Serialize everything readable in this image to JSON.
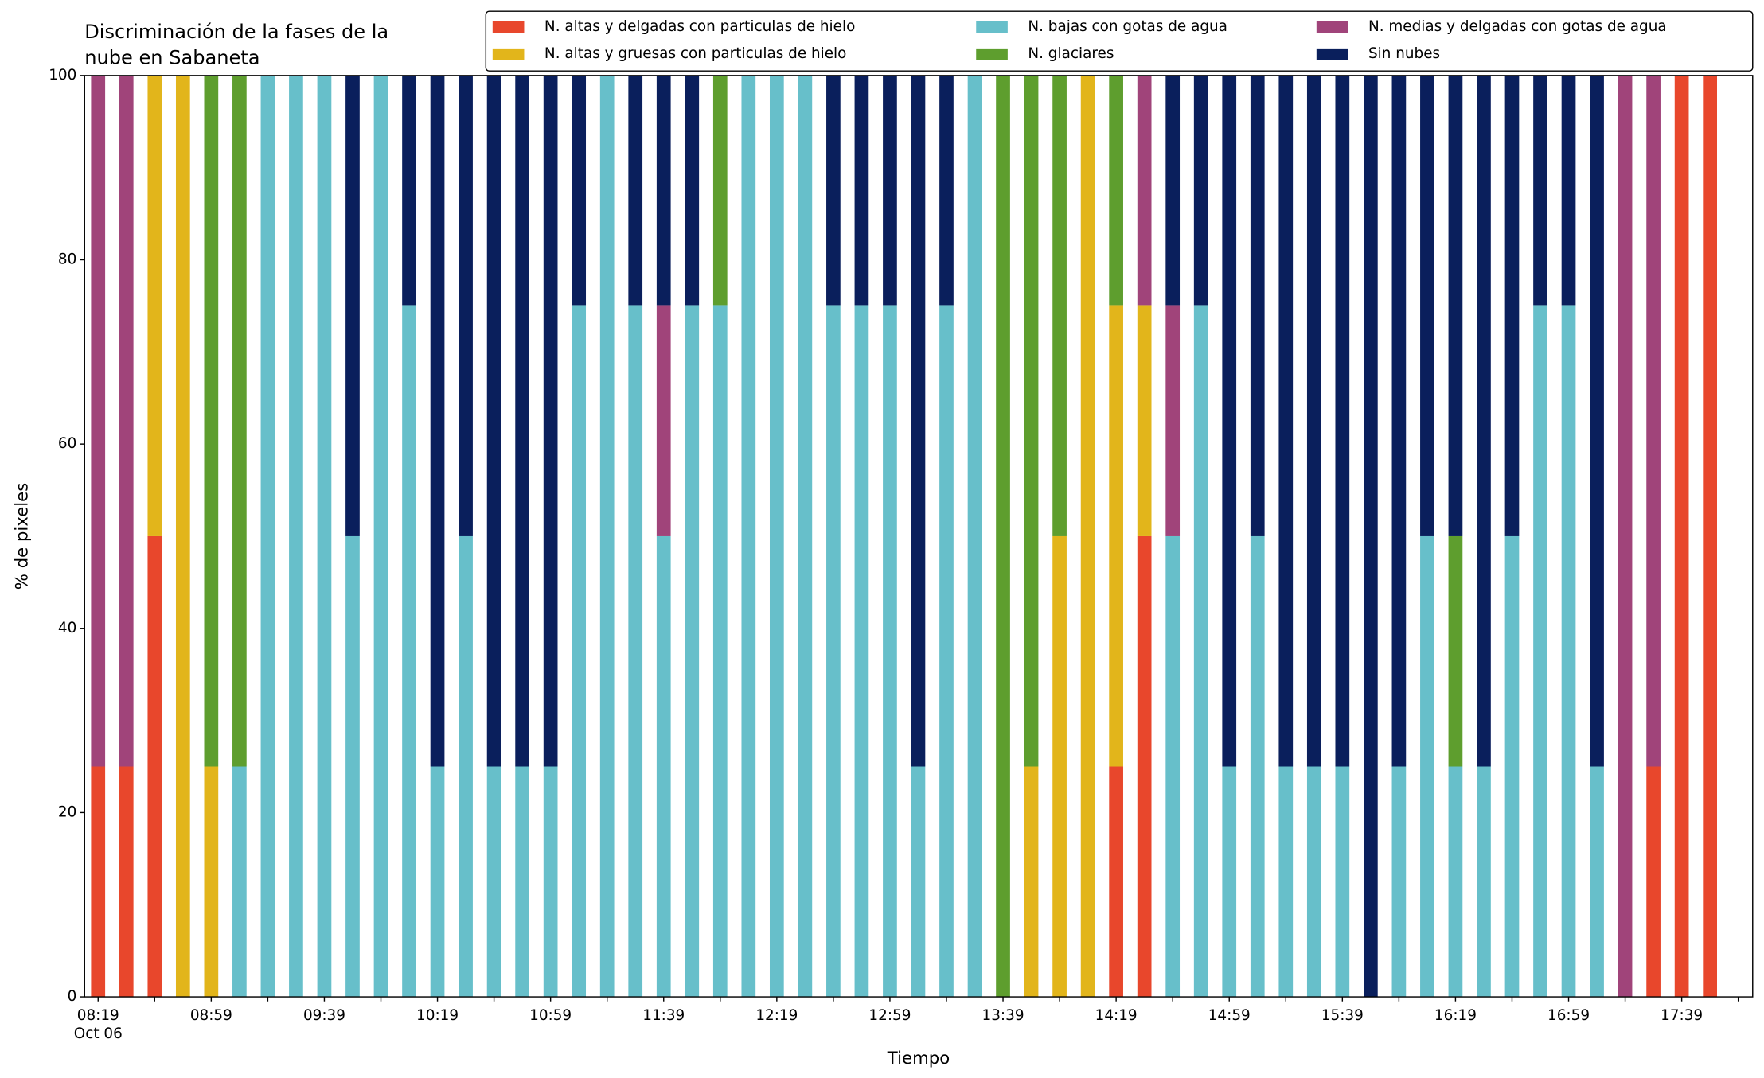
{
  "chart_data": {
    "type": "stacked_bar",
    "title": [
      "Discriminación de la fases de la",
      "nube en Sabaneta"
    ],
    "xlabel": "Tiempo",
    "ylabel": "% de pixeles",
    "x_date_label": "Oct 06",
    "categories": [
      "08:19",
      null,
      null,
      null,
      "08:59",
      null,
      null,
      null,
      "09:39",
      null,
      null,
      null,
      "10:19",
      null,
      null,
      null,
      "10:59",
      null,
      null,
      null,
      "11:39",
      null,
      null,
      null,
      "12:19",
      null,
      null,
      null,
      "12:59",
      null,
      null,
      null,
      "13:39",
      null,
      null,
      null,
      "14:19",
      null,
      null,
      null,
      "14:59",
      null,
      null,
      null,
      "15:39",
      null,
      null,
      null,
      "16:19",
      null,
      null,
      null,
      "16:59",
      null,
      null,
      null,
      "17:39",
      null
    ],
    "ylim": [
      0,
      100
    ],
    "yticks": [
      0,
      20,
      40,
      60,
      80,
      100
    ],
    "series": [
      {
        "name": "N. altas y delgadas con particulas de hielo",
        "color": "#e8472c",
        "values": [
          25,
          25,
          50,
          0,
          0,
          0,
          0,
          0,
          0,
          0,
          0,
          0,
          0,
          0,
          0,
          0,
          0,
          0,
          0,
          0,
          0,
          0,
          0,
          0,
          0,
          0,
          0,
          0,
          0,
          0,
          0,
          0,
          0,
          0,
          0,
          0,
          25,
          50,
          0,
          0,
          0,
          0,
          0,
          0,
          0,
          0,
          0,
          0,
          0,
          0,
          0,
          0,
          0,
          0,
          0,
          25,
          100,
          100
        ]
      },
      {
        "name": "N. altas y gruesas con particulas de hielo",
        "color": "#e2b51b",
        "values": [
          0,
          0,
          50,
          100,
          25,
          0,
          0,
          0,
          0,
          0,
          0,
          0,
          0,
          0,
          0,
          0,
          0,
          0,
          0,
          0,
          0,
          0,
          0,
          0,
          0,
          0,
          0,
          0,
          0,
          0,
          0,
          0,
          0,
          25,
          50,
          100,
          50,
          25,
          0,
          0,
          0,
          0,
          0,
          0,
          0,
          0,
          0,
          0,
          0,
          0,
          0,
          0,
          0,
          0,
          0,
          0,
          0,
          0
        ]
      },
      {
        "name": "N. bajas con gotas de agua",
        "color": "#67bfca",
        "values": [
          0,
          0,
          0,
          0,
          0,
          25,
          100,
          100,
          100,
          50,
          100,
          75,
          25,
          50,
          25,
          25,
          25,
          75,
          100,
          75,
          50,
          75,
          75,
          100,
          100,
          100,
          75,
          75,
          75,
          25,
          75,
          100,
          0,
          0,
          0,
          0,
          0,
          0,
          50,
          75,
          25,
          50,
          25,
          25,
          25,
          0,
          25,
          50,
          25,
          25,
          50,
          75,
          75,
          25,
          0,
          0,
          0,
          0
        ]
      },
      {
        "name": "N. glaciares",
        "color": "#5e9e2e",
        "values": [
          0,
          0,
          0,
          0,
          75,
          75,
          0,
          0,
          0,
          0,
          0,
          0,
          0,
          0,
          0,
          0,
          0,
          0,
          0,
          0,
          0,
          0,
          25,
          0,
          0,
          0,
          0,
          0,
          0,
          0,
          0,
          0,
          100,
          75,
          50,
          0,
          25,
          0,
          0,
          0,
          0,
          0,
          0,
          0,
          0,
          0,
          0,
          0,
          25,
          0,
          0,
          0,
          0,
          0,
          0,
          0,
          0,
          0
        ]
      },
      {
        "name": "N. medias y delgadas con gotas de agua",
        "color": "#a0447a",
        "values": [
          75,
          75,
          0,
          0,
          0,
          0,
          0,
          0,
          0,
          0,
          0,
          0,
          0,
          0,
          0,
          0,
          0,
          0,
          0,
          0,
          25,
          0,
          0,
          0,
          0,
          0,
          0,
          0,
          0,
          0,
          0,
          0,
          0,
          0,
          0,
          0,
          0,
          25,
          25,
          0,
          0,
          0,
          0,
          0,
          0,
          0,
          0,
          0,
          0,
          0,
          0,
          0,
          0,
          0,
          100,
          75,
          0,
          0
        ]
      },
      {
        "name": "Sin nubes",
        "color": "#0a1f5c",
        "values": [
          0,
          0,
          0,
          0,
          0,
          0,
          0,
          0,
          0,
          50,
          0,
          25,
          75,
          50,
          75,
          75,
          75,
          25,
          0,
          25,
          25,
          25,
          0,
          0,
          0,
          0,
          25,
          25,
          25,
          75,
          25,
          0,
          0,
          0,
          0,
          0,
          0,
          0,
          25,
          25,
          75,
          50,
          75,
          75,
          75,
          100,
          75,
          50,
          50,
          75,
          50,
          25,
          25,
          75,
          0,
          0,
          0,
          0
        ]
      }
    ]
  }
}
